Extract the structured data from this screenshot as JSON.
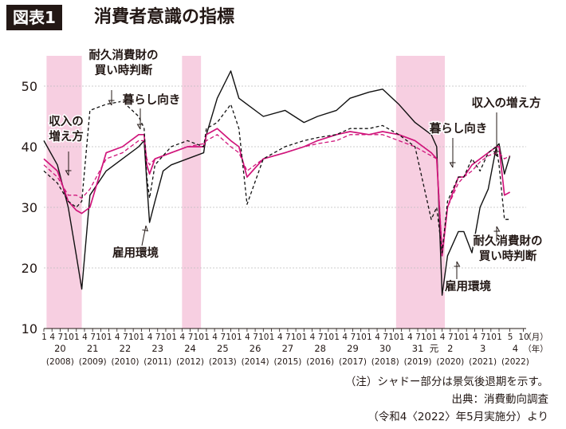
{
  "header": {
    "badge": "図表1",
    "title": "消費者意識の指標"
  },
  "footnotes": {
    "note": "（注）シャドー部分は景気後退期を示す。",
    "source": "出典：消費動向調査",
    "source_detail": "（令和4〈2022〉年5月実施分）より"
  },
  "colors": {
    "employment": "#111111",
    "income": "#d0157b",
    "lifestyle": "#d0157b",
    "durables": "#111111",
    "shade": "#f7cfe1",
    "grid": "#bdbdbd"
  },
  "chart_data": {
    "type": "line",
    "x_unit": "month",
    "ylim": [
      10,
      55
    ],
    "yticks": [
      10,
      20,
      30,
      40,
      50
    ],
    "grid": true,
    "x_labels": {
      "months": [
        "1",
        "4",
        "7",
        "10"
      ],
      "final_months": [
        "1",
        "5",
        "10"
      ],
      "unit_month": "（月）",
      "unit_year": "（年）",
      "years": [
        {
          "era": "20",
          "ad": "(2008)"
        },
        {
          "era": "21",
          "ad": "(2009)"
        },
        {
          "era": "22",
          "ad": "(2010)"
        },
        {
          "era": "23",
          "ad": "(2011)"
        },
        {
          "era": "24",
          "ad": "(2012)"
        },
        {
          "era": "25",
          "ad": "(2013)"
        },
        {
          "era": "26",
          "ad": "(2014)"
        },
        {
          "era": "27",
          "ad": "(2015)"
        },
        {
          "era": "28",
          "ad": "(2016)"
        },
        {
          "era": "29",
          "ad": "(2017)"
        },
        {
          "era": "30",
          "ad": "(2018)"
        },
        {
          "era": "31",
          "ad": "(2019)",
          "era2": "元"
        },
        {
          "era": "2",
          "ad": "(2020)"
        },
        {
          "era": "3",
          "ad": "(2021)"
        },
        {
          "era": "4",
          "ad": "(2022)"
        }
      ]
    },
    "recessions": [
      [
        "2008-02",
        "2009-03"
      ],
      [
        "2012-04",
        "2012-11"
      ],
      [
        "2018-11",
        "2020-05"
      ]
    ],
    "annotations": [
      {
        "id": "income-label-left",
        "text": "収入の\n増え方",
        "series": "income",
        "at": "2008-08"
      },
      {
        "id": "durables-label-top",
        "text": "耐久消費財の\n買い時判断",
        "series": "durables",
        "at": "2009-05"
      },
      {
        "id": "lifestyle-label-top",
        "text": "暮らし向き",
        "series": "lifestyle",
        "at": "2011-05"
      },
      {
        "id": "employment-label-mid",
        "text": "雇用環境",
        "series": "employment",
        "at": "2011-04"
      },
      {
        "id": "income-label-right",
        "text": "収入の増え方",
        "series": "income",
        "at": "2021-12"
      },
      {
        "id": "lifestyle-label-right",
        "text": "暮らし向き",
        "series": "lifestyle",
        "at": "2020-12"
      },
      {
        "id": "durables-label-right",
        "text": "耐久消費財の\n買い時判断",
        "series": "durables",
        "at": "2022-05"
      },
      {
        "id": "employment-label-right",
        "text": "雇用環境",
        "series": "employment",
        "at": "2020-08"
      }
    ],
    "series": [
      {
        "id": "employment",
        "style": "solid-black",
        "points": [
          [
            "2008-01",
            41
          ],
          [
            "2008-06",
            37
          ],
          [
            "2008-10",
            30
          ],
          [
            "2009-01",
            22
          ],
          [
            "2009-03",
            16.5
          ],
          [
            "2009-06",
            32
          ],
          [
            "2009-12",
            36
          ],
          [
            "2010-06",
            38
          ],
          [
            "2010-12",
            40
          ],
          [
            "2011-02",
            41
          ],
          [
            "2011-03",
            34
          ],
          [
            "2011-04",
            27.5
          ],
          [
            "2011-06",
            31
          ],
          [
            "2011-09",
            36
          ],
          [
            "2011-12",
            37
          ],
          [
            "2012-06",
            38
          ],
          [
            "2012-12",
            39
          ],
          [
            "2013-01",
            42
          ],
          [
            "2013-05",
            48
          ],
          [
            "2013-10",
            52.5
          ],
          [
            "2014-01",
            48
          ],
          [
            "2014-04",
            47
          ],
          [
            "2014-10",
            45
          ],
          [
            "2015-06",
            46
          ],
          [
            "2016-01",
            44
          ],
          [
            "2016-06",
            45
          ],
          [
            "2017-01",
            46
          ],
          [
            "2017-06",
            48
          ],
          [
            "2018-01",
            49
          ],
          [
            "2018-06",
            49.5
          ],
          [
            "2018-12",
            47
          ],
          [
            "2019-06",
            44
          ],
          [
            "2019-12",
            42
          ],
          [
            "2020-02",
            40
          ],
          [
            "2020-04",
            15.5
          ],
          [
            "2020-06",
            22
          ],
          [
            "2020-10",
            26
          ],
          [
            "2020-12",
            26
          ],
          [
            "2021-03",
            22.5
          ],
          [
            "2021-06",
            30
          ],
          [
            "2021-09",
            33
          ],
          [
            "2021-12",
            40
          ],
          [
            "2022-01",
            40.5
          ],
          [
            "2022-03",
            35.5
          ],
          [
            "2022-05",
            38.5
          ]
        ]
      },
      {
        "id": "income",
        "style": "solid-magenta",
        "points": [
          [
            "2008-01",
            38
          ],
          [
            "2008-06",
            36
          ],
          [
            "2008-10",
            31
          ],
          [
            "2009-01",
            29.5
          ],
          [
            "2009-03",
            29
          ],
          [
            "2009-06",
            30
          ],
          [
            "2009-12",
            39
          ],
          [
            "2010-06",
            40
          ],
          [
            "2010-12",
            42
          ],
          [
            "2011-02",
            42
          ],
          [
            "2011-03",
            37
          ],
          [
            "2011-04",
            35.5
          ],
          [
            "2011-06",
            38
          ],
          [
            "2011-12",
            39
          ],
          [
            "2012-06",
            40
          ],
          [
            "2012-12",
            40
          ],
          [
            "2013-01",
            42
          ],
          [
            "2013-05",
            43
          ],
          [
            "2013-10",
            41
          ],
          [
            "2014-01",
            40
          ],
          [
            "2014-04",
            35
          ],
          [
            "2014-10",
            38
          ],
          [
            "2015-06",
            39
          ],
          [
            "2016-01",
            40
          ],
          [
            "2016-06",
            41
          ],
          [
            "2017-01",
            42
          ],
          [
            "2017-06",
            42.5
          ],
          [
            "2018-01",
            42
          ],
          [
            "2018-06",
            42.5
          ],
          [
            "2018-12",
            42
          ],
          [
            "2019-06",
            41
          ],
          [
            "2019-12",
            39
          ],
          [
            "2020-02",
            38
          ],
          [
            "2020-04",
            22
          ],
          [
            "2020-06",
            30
          ],
          [
            "2020-10",
            35
          ],
          [
            "2020-12",
            35
          ],
          [
            "2021-03",
            37
          ],
          [
            "2021-06",
            38
          ],
          [
            "2021-09",
            39
          ],
          [
            "2021-12",
            40
          ],
          [
            "2022-01",
            40
          ],
          [
            "2022-03",
            32
          ],
          [
            "2022-05",
            32.5
          ]
        ]
      },
      {
        "id": "lifestyle",
        "style": "dashed-magenta",
        "points": [
          [
            "2008-01",
            37
          ],
          [
            "2008-06",
            35
          ],
          [
            "2008-10",
            32
          ],
          [
            "2009-01",
            32
          ],
          [
            "2009-03",
            31.5
          ],
          [
            "2009-06",
            33
          ],
          [
            "2009-12",
            38
          ],
          [
            "2010-06",
            39
          ],
          [
            "2010-12",
            41
          ],
          [
            "2011-02",
            41
          ],
          [
            "2011-03",
            38
          ],
          [
            "2011-04",
            37
          ],
          [
            "2011-06",
            38
          ],
          [
            "2011-12",
            39
          ],
          [
            "2012-06",
            40
          ],
          [
            "2012-12",
            40.5
          ],
          [
            "2013-01",
            41
          ],
          [
            "2013-05",
            42
          ],
          [
            "2013-10",
            40
          ],
          [
            "2014-01",
            39
          ],
          [
            "2014-04",
            36
          ],
          [
            "2014-10",
            38
          ],
          [
            "2015-06",
            39
          ],
          [
            "2016-01",
            40
          ],
          [
            "2016-06",
            40.5
          ],
          [
            "2017-01",
            41
          ],
          [
            "2017-06",
            42
          ],
          [
            "2018-01",
            42
          ],
          [
            "2018-06",
            42
          ],
          [
            "2018-12",
            41
          ],
          [
            "2019-06",
            40
          ],
          [
            "2019-12",
            38.5
          ],
          [
            "2020-02",
            38
          ],
          [
            "2020-04",
            23
          ],
          [
            "2020-06",
            30
          ],
          [
            "2020-10",
            34
          ],
          [
            "2020-12",
            35
          ],
          [
            "2021-03",
            36
          ],
          [
            "2021-06",
            37.5
          ],
          [
            "2021-09",
            38.5
          ],
          [
            "2021-12",
            39
          ],
          [
            "2022-01",
            39
          ],
          [
            "2022-03",
            38
          ],
          [
            "2022-05",
            38.5
          ]
        ]
      },
      {
        "id": "durables",
        "style": "dashed-black",
        "points": [
          [
            "2008-01",
            36
          ],
          [
            "2008-06",
            34
          ],
          [
            "2008-10",
            31
          ],
          [
            "2009-01",
            30
          ],
          [
            "2009-03",
            31
          ],
          [
            "2009-06",
            46
          ],
          [
            "2009-12",
            47
          ],
          [
            "2010-06",
            47.5
          ],
          [
            "2010-12",
            45
          ],
          [
            "2011-02",
            43
          ],
          [
            "2011-03",
            35
          ],
          [
            "2011-04",
            31.5
          ],
          [
            "2011-06",
            37
          ],
          [
            "2011-12",
            40
          ],
          [
            "2012-06",
            41
          ],
          [
            "2012-12",
            40
          ],
          [
            "2013-01",
            43
          ],
          [
            "2013-05",
            44
          ],
          [
            "2013-10",
            47
          ],
          [
            "2014-01",
            43
          ],
          [
            "2014-04",
            30.5
          ],
          [
            "2014-10",
            38
          ],
          [
            "2015-06",
            40
          ],
          [
            "2016-01",
            41
          ],
          [
            "2016-06",
            41.5
          ],
          [
            "2017-01",
            42
          ],
          [
            "2017-06",
            43
          ],
          [
            "2018-01",
            43
          ],
          [
            "2018-06",
            43.5
          ],
          [
            "2018-12",
            42
          ],
          [
            "2019-06",
            40
          ],
          [
            "2019-12",
            28
          ],
          [
            "2020-02",
            30
          ],
          [
            "2020-04",
            22.5
          ],
          [
            "2020-06",
            31
          ],
          [
            "2020-10",
            35
          ],
          [
            "2020-12",
            35
          ],
          [
            "2021-03",
            38
          ],
          [
            "2021-06",
            36
          ],
          [
            "2021-09",
            39
          ],
          [
            "2021-12",
            40
          ],
          [
            "2022-01",
            37
          ],
          [
            "2022-03",
            28
          ],
          [
            "2022-05",
            28
          ]
        ]
      }
    ]
  }
}
